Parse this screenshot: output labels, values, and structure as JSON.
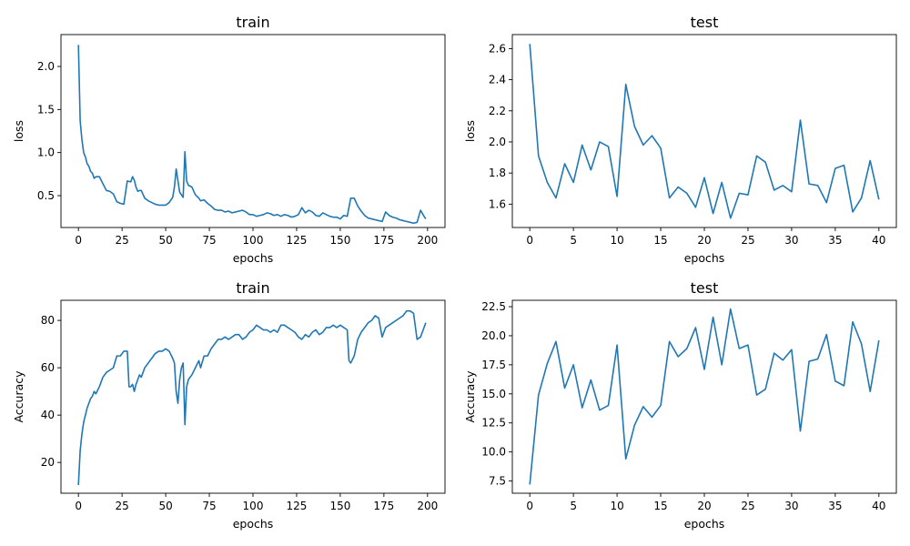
{
  "chart_data": [
    {
      "type": "line",
      "title": "train",
      "xlabel": "epochs",
      "ylabel": "loss",
      "xlim": [
        -10,
        210
      ],
      "ylim": [
        0.13,
        2.37
      ],
      "xticks": [
        0,
        25,
        50,
        75,
        100,
        125,
        150,
        175,
        200
      ],
      "yticks": [
        0.5,
        1.0,
        1.5,
        2.0
      ],
      "ytick_labels": [
        "0.5",
        "1.0",
        "1.5",
        "2.0"
      ],
      "color": "#1f77b4",
      "series": [
        {
          "x": [
            0,
            1,
            2,
            3,
            4,
            5,
            6,
            7,
            8,
            9,
            10,
            12,
            14,
            16,
            18,
            20,
            22,
            24,
            26,
            28,
            30,
            31,
            32,
            33,
            34,
            35,
            36,
            38,
            40,
            42,
            44,
            46,
            48,
            50,
            52,
            54,
            55,
            56,
            58,
            60,
            61,
            62,
            63,
            65,
            67,
            69,
            70,
            72,
            74,
            76,
            78,
            80,
            82,
            84,
            86,
            88,
            90,
            92,
            94,
            96,
            98,
            100,
            102,
            104,
            106,
            108,
            110,
            112,
            114,
            116,
            118,
            120,
            122,
            124,
            126,
            128,
            130,
            132,
            134,
            136,
            138,
            140,
            142,
            144,
            146,
            148,
            150,
            152,
            154,
            156,
            158,
            160,
            162,
            164,
            166,
            168,
            170,
            172,
            174,
            176,
            178,
            180,
            182,
            184,
            186,
            188,
            190,
            192,
            194,
            196,
            198,
            199
          ],
          "y": [
            2.25,
            1.37,
            1.15,
            1.0,
            0.95,
            0.87,
            0.84,
            0.78,
            0.76,
            0.7,
            0.72,
            0.72,
            0.64,
            0.56,
            0.55,
            0.52,
            0.43,
            0.41,
            0.4,
            0.67,
            0.66,
            0.72,
            0.68,
            0.6,
            0.55,
            0.56,
            0.56,
            0.47,
            0.44,
            0.42,
            0.4,
            0.39,
            0.39,
            0.39,
            0.42,
            0.48,
            0.6,
            0.81,
            0.54,
            0.48,
            1.01,
            0.67,
            0.62,
            0.6,
            0.51,
            0.47,
            0.44,
            0.45,
            0.41,
            0.38,
            0.34,
            0.33,
            0.33,
            0.31,
            0.32,
            0.3,
            0.31,
            0.32,
            0.33,
            0.31,
            0.28,
            0.28,
            0.26,
            0.27,
            0.28,
            0.3,
            0.29,
            0.27,
            0.28,
            0.26,
            0.28,
            0.27,
            0.25,
            0.26,
            0.28,
            0.36,
            0.3,
            0.33,
            0.31,
            0.27,
            0.26,
            0.3,
            0.28,
            0.26,
            0.25,
            0.25,
            0.23,
            0.27,
            0.26,
            0.47,
            0.47,
            0.38,
            0.32,
            0.27,
            0.24,
            0.23,
            0.22,
            0.21,
            0.2,
            0.31,
            0.27,
            0.25,
            0.24,
            0.22,
            0.21,
            0.2,
            0.19,
            0.18,
            0.19,
            0.33,
            0.26,
            0.23
          ]
        }
      ]
    },
    {
      "type": "line",
      "title": "test",
      "xlabel": "epochs",
      "ylabel": "loss",
      "xlim": [
        -2,
        42
      ],
      "ylim": [
        1.45,
        2.69
      ],
      "xticks": [
        0,
        5,
        10,
        15,
        20,
        25,
        30,
        35,
        40
      ],
      "yticks": [
        1.6,
        1.8,
        2.0,
        2.2,
        2.4,
        2.6
      ],
      "ytick_labels": [
        "1.6",
        "1.8",
        "2.0",
        "2.2",
        "2.4",
        "2.6"
      ],
      "color": "#1f77b4",
      "series": [
        {
          "x": [
            0,
            1,
            2,
            3,
            4,
            5,
            6,
            7,
            8,
            9,
            10,
            11,
            12,
            13,
            14,
            15,
            16,
            17,
            18,
            19,
            20,
            21,
            22,
            23,
            24,
            25,
            26,
            27,
            28,
            29,
            30,
            31,
            32,
            33,
            34,
            35,
            36,
            37,
            38,
            39,
            40
          ],
          "y": [
            2.63,
            1.91,
            1.74,
            1.64,
            1.86,
            1.74,
            1.98,
            1.82,
            2.0,
            1.97,
            1.65,
            2.37,
            2.1,
            1.98,
            2.04,
            1.96,
            1.64,
            1.71,
            1.67,
            1.58,
            1.77,
            1.54,
            1.74,
            1.51,
            1.67,
            1.66,
            1.91,
            1.87,
            1.69,
            1.72,
            1.68,
            2.14,
            1.73,
            1.72,
            1.61,
            1.83,
            1.85,
            1.55,
            1.64,
            1.88,
            1.63
          ]
        }
      ]
    },
    {
      "type": "line",
      "title": "train",
      "xlabel": "epochs",
      "ylabel": "Accuracy",
      "xlim": [
        -10,
        210
      ],
      "ylim": [
        7,
        88.5
      ],
      "xticks": [
        0,
        25,
        50,
        75,
        100,
        125,
        150,
        175,
        200
      ],
      "yticks": [
        20,
        40,
        60,
        80
      ],
      "ytick_labels": [
        "20",
        "40",
        "60",
        "80"
      ],
      "color": "#1f77b4",
      "series": [
        {
          "x": [
            0,
            1,
            2,
            3,
            4,
            5,
            6,
            7,
            8,
            9,
            10,
            12,
            14,
            16,
            18,
            20,
            22,
            24,
            26,
            28,
            29,
            30,
            31,
            32,
            33,
            34,
            35,
            36,
            38,
            40,
            42,
            44,
            46,
            48,
            50,
            52,
            54,
            55,
            56,
            57,
            58,
            59,
            60,
            61,
            62,
            63,
            65,
            67,
            69,
            70,
            72,
            74,
            76,
            78,
            80,
            82,
            84,
            86,
            88,
            90,
            92,
            94,
            96,
            98,
            100,
            102,
            104,
            106,
            108,
            110,
            112,
            114,
            116,
            118,
            120,
            122,
            124,
            126,
            128,
            130,
            132,
            134,
            136,
            138,
            140,
            142,
            144,
            146,
            148,
            150,
            152,
            154,
            155,
            156,
            158,
            160,
            162,
            164,
            166,
            168,
            170,
            172,
            174,
            176,
            178,
            180,
            182,
            184,
            186,
            188,
            190,
            192,
            194,
            196,
            198,
            199
          ],
          "y": [
            10.5,
            25,
            32,
            37,
            40,
            43,
            45,
            47,
            48,
            50,
            49,
            52,
            56,
            58,
            59,
            60,
            65,
            65,
            67,
            67,
            52,
            52,
            53,
            50,
            53,
            55,
            57,
            56,
            60,
            62,
            64,
            66,
            67,
            67,
            68,
            67,
            64,
            62,
            50,
            45,
            55,
            60,
            62,
            36,
            52,
            55,
            57,
            60,
            63,
            60,
            65,
            65,
            68,
            70,
            72,
            72,
            73,
            72,
            73,
            74,
            74,
            72,
            73,
            75,
            76,
            78,
            77,
            76,
            76,
            75,
            76,
            75,
            78,
            78,
            77,
            76,
            75,
            73,
            72,
            74,
            73,
            75,
            76,
            74,
            75,
            77,
            77,
            78,
            77,
            78,
            77,
            76,
            63,
            62,
            65,
            72,
            75,
            77,
            79,
            80,
            82,
            81,
            73,
            77,
            78,
            79,
            80,
            81,
            82,
            84,
            84,
            83,
            72,
            73,
            77,
            79
          ]
        }
      ]
    },
    {
      "type": "line",
      "title": "test",
      "xlabel": "epochs",
      "ylabel": "Accuracy",
      "xlim": [
        -2,
        42
      ],
      "ylim": [
        6.45,
        23.05
      ],
      "xticks": [
        0,
        5,
        10,
        15,
        20,
        25,
        30,
        35,
        40
      ],
      "yticks": [
        7.5,
        10.0,
        12.5,
        15.0,
        17.5,
        20.0,
        22.5
      ],
      "ytick_labels": [
        "7.5",
        "10.0",
        "12.5",
        "15.0",
        "17.5",
        "20.0",
        "22.5"
      ],
      "color": "#1f77b4",
      "series": [
        {
          "x": [
            0,
            1,
            2,
            3,
            4,
            5,
            6,
            7,
            8,
            9,
            10,
            11,
            12,
            13,
            14,
            15,
            16,
            17,
            18,
            19,
            20,
            21,
            22,
            23,
            24,
            25,
            26,
            27,
            28,
            29,
            30,
            31,
            32,
            33,
            34,
            35,
            36,
            37,
            38,
            39,
            40
          ],
          "y": [
            7.2,
            14.9,
            17.6,
            19.5,
            15.5,
            17.5,
            13.8,
            16.2,
            13.6,
            14,
            19.2,
            9.4,
            12.3,
            13.9,
            13,
            14,
            19.5,
            18.2,
            18.9,
            20.7,
            17.1,
            21.6,
            17.5,
            22.3,
            18.9,
            19.2,
            14.9,
            15.4,
            18.5,
            17.9,
            18.8,
            11.8,
            17.8,
            18,
            20.1,
            16.1,
            15.7,
            21.2,
            19.3,
            15.2,
            19.6
          ]
        }
      ]
    }
  ]
}
